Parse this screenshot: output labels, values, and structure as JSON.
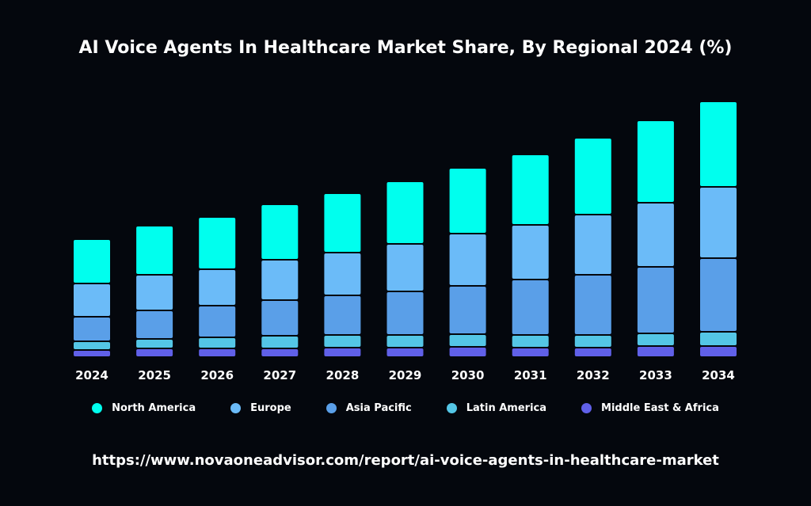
{
  "chart_data": {
    "type": "bar",
    "stacked": true,
    "title": "AI Voice Agents In Healthcare Market Share, By Regional 2024 (%)",
    "categories": [
      "2024",
      "2025",
      "2026",
      "2027",
      "2028",
      "2029",
      "2030",
      "2031",
      "2032",
      "2033",
      "2034"
    ],
    "series": [
      {
        "name": "Middle East & Africa",
        "color": "#6060E8",
        "values": [
          9,
          11,
          11,
          11,
          12,
          12,
          13,
          12,
          12,
          14,
          14
        ]
      },
      {
        "name": "Latin America",
        "color": "#54C6E6",
        "values": [
          11,
          12,
          14,
          16,
          16,
          16,
          16,
          16,
          16,
          16,
          18
        ]
      },
      {
        "name": "Asia Pacific",
        "color": "#5A9FE8",
        "values": [
          31,
          36,
          40,
          45,
          50,
          55,
          61,
          70,
          76,
          84,
          93
        ]
      },
      {
        "name": "Europe",
        "color": "#6BBBF8",
        "values": [
          42,
          45,
          46,
          51,
          54,
          60,
          66,
          69,
          76,
          81,
          90
        ]
      },
      {
        "name": "North America",
        "color": "#00FFEE",
        "values": [
          56,
          62,
          66,
          70,
          75,
          79,
          83,
          89,
          97,
          104,
          108
        ]
      }
    ],
    "legend_order": [
      "North America",
      "Europe",
      "Asia Pacific",
      "Latin America",
      "Middle East & Africa"
    ],
    "ylim": [
      0,
      330
    ],
    "grid": false,
    "legend_position": "bottom",
    "y_axis_shown": false
  },
  "footer": {
    "url": "https://www.novaoneadvisor.com/report/ai-voice-agents-in-healthcare-market"
  },
  "background": "#04070d"
}
